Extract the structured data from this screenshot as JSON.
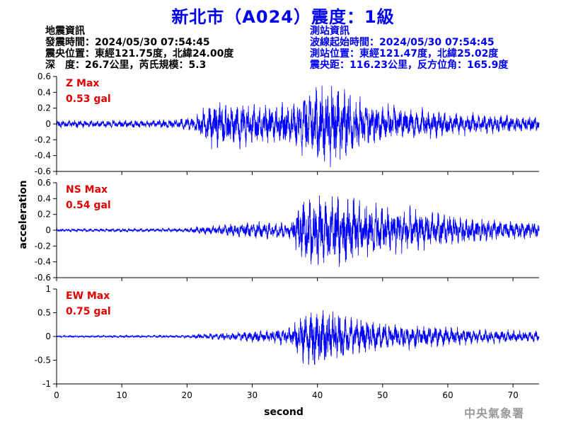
{
  "page": {
    "title": "新北市（A024）震度：1級",
    "agency": "中央氣象署"
  },
  "quake_info": {
    "heading": "地震資訊",
    "time": "發震時間：2024/05/30 07:54:45",
    "epicenter": "震央位置：東經121.75度，北緯24.00度",
    "depth_magnitude": "深　度：26.7公里，芮氏規模：5.3"
  },
  "station_info": {
    "heading": "測站資訊",
    "wave_start": "波線起始時間：2024/05/30 07:54:45",
    "location": "測站位置：東經121.47度，北緯25.02度",
    "distance": "震央距：116.23公里，反方位角：165.9度"
  },
  "colors": {
    "trace": "#0000ff",
    "max_label": "#e00000",
    "title": "#0000ee"
  },
  "chart_data": {
    "type": "line",
    "xlabel": "second",
    "ylabel": "acceleration",
    "xlim": [
      0,
      74
    ],
    "xticks": [
      0,
      10,
      20,
      30,
      40,
      50,
      60,
      70
    ],
    "panels": [
      {
        "name": "Z",
        "max_label": "Z Max",
        "max_value": "0.53 gal",
        "ylim": [
          -0.6,
          0.6
        ],
        "yticks": [
          -0.6,
          -0.4,
          -0.2,
          0,
          0.2,
          0.4,
          0.6
        ],
        "envelope": [
          [
            0,
            0.05
          ],
          [
            15,
            0.05
          ],
          [
            17,
            0.06
          ],
          [
            19,
            0.08
          ],
          [
            21,
            0.08
          ],
          [
            22.5,
            0.2
          ],
          [
            24,
            0.3
          ],
          [
            28,
            0.3
          ],
          [
            31,
            0.25
          ],
          [
            34,
            0.25
          ],
          [
            37,
            0.3
          ],
          [
            38.5,
            0.45
          ],
          [
            42,
            0.5
          ],
          [
            44,
            0.45
          ],
          [
            47,
            0.3
          ],
          [
            52,
            0.22
          ],
          [
            60,
            0.15
          ],
          [
            66,
            0.12
          ],
          [
            70,
            0.11
          ],
          [
            74,
            0.1
          ]
        ]
      },
      {
        "name": "NS",
        "max_label": "NS Max",
        "max_value": "0.54 gal",
        "ylim": [
          -0.6,
          0.6
        ],
        "yticks": [
          -0.6,
          -0.4,
          -0.2,
          0,
          0.2,
          0.4,
          0.6
        ],
        "envelope": [
          [
            0,
            0.02
          ],
          [
            20,
            0.025
          ],
          [
            22,
            0.05
          ],
          [
            25,
            0.06
          ],
          [
            28,
            0.1
          ],
          [
            31,
            0.12
          ],
          [
            34,
            0.1
          ],
          [
            36,
            0.12
          ],
          [
            37,
            0.3
          ],
          [
            38,
            0.45
          ],
          [
            41,
            0.48
          ],
          [
            43,
            0.5
          ],
          [
            46,
            0.4
          ],
          [
            50,
            0.3
          ],
          [
            55,
            0.25
          ],
          [
            60,
            0.2
          ],
          [
            65,
            0.15
          ],
          [
            70,
            0.12
          ],
          [
            74,
            0.1
          ]
        ]
      },
      {
        "name": "EW",
        "max_label": "EW Max",
        "max_value": "0.75 gal",
        "ylim": [
          -1,
          1
        ],
        "yticks": [
          -1,
          -0.5,
          0,
          0.5,
          1
        ],
        "envelope": [
          [
            0,
            0.02
          ],
          [
            20,
            0.03
          ],
          [
            22,
            0.06
          ],
          [
            26,
            0.08
          ],
          [
            30,
            0.12
          ],
          [
            33,
            0.15
          ],
          [
            36,
            0.2
          ],
          [
            37,
            0.4
          ],
          [
            38,
            0.6
          ],
          [
            39.5,
            0.7
          ],
          [
            42,
            0.6
          ],
          [
            45,
            0.4
          ],
          [
            50,
            0.3
          ],
          [
            55,
            0.25
          ],
          [
            60,
            0.2
          ],
          [
            65,
            0.15
          ],
          [
            70,
            0.13
          ],
          [
            74,
            0.12
          ]
        ]
      }
    ]
  }
}
